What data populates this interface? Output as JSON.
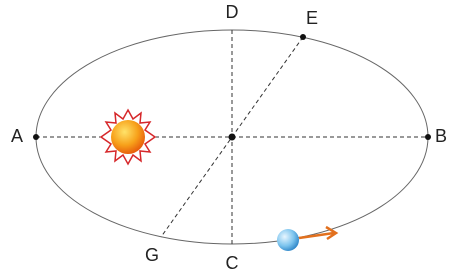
{
  "nodes": [
    {
      "label": "A"
    },
    {
      "label": "B"
    },
    {
      "label": "C"
    },
    {
      "label": "D"
    },
    {
      "label": "E"
    },
    {
      "label": "G"
    }
  ]
}
